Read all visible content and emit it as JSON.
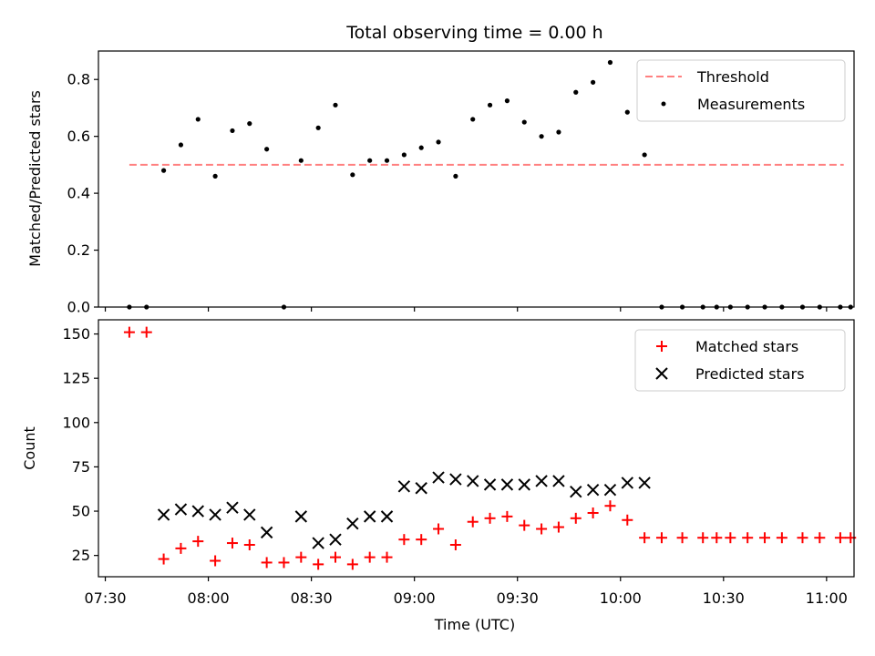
{
  "figure": {
    "title": "Total observing time = 0.00 h"
  },
  "colors": {
    "threshold": "#ff8080",
    "measurements": "#000000",
    "matched": "#ff0000",
    "predicted": "#000000",
    "axes": "#000000",
    "background": "#ffffff"
  },
  "chart_data": [
    {
      "type": "scatter",
      "title": "Total observing time = 0.00 h",
      "xlabel": "",
      "ylabel": "Matched/Predicted stars",
      "xlim": [
        "07:28",
        "11:08"
      ],
      "ylim": [
        0,
        0.9
      ],
      "yticks": [
        0.0,
        0.2,
        0.4,
        0.6,
        0.8
      ],
      "ytick_labels": [
        "0.0",
        "0.2",
        "0.4",
        "0.6",
        "0.8"
      ],
      "xticks": [
        "07:30",
        "08:00",
        "08:30",
        "09:00",
        "09:30",
        "10:00",
        "10:30",
        "11:00"
      ],
      "legend_position": "top-right",
      "legend": [
        "Threshold",
        "Measurements"
      ],
      "series": [
        {
          "name": "Threshold",
          "kind": "dashed-line",
          "x": [
            "07:37",
            "11:05"
          ],
          "y": [
            0.5,
            0.5
          ]
        },
        {
          "name": "Measurements",
          "kind": "dot",
          "x": [
            "07:37",
            "07:42",
            "07:47",
            "07:52",
            "07:57",
            "08:02",
            "08:07",
            "08:12",
            "08:17",
            "08:22",
            "08:27",
            "08:32",
            "08:37",
            "08:42",
            "08:47",
            "08:52",
            "08:57",
            "09:02",
            "09:07",
            "09:12",
            "09:17",
            "09:22",
            "09:27",
            "09:32",
            "09:37",
            "09:42",
            "09:47",
            "09:52",
            "09:57",
            "10:02",
            "10:07",
            "10:12",
            "10:18",
            "10:24",
            "10:28",
            "10:32",
            "10:37",
            "10:42",
            "10:47",
            "10:53",
            "10:58",
            "11:04",
            "11:07"
          ],
          "y": [
            0.0,
            0.0,
            0.48,
            0.57,
            0.66,
            0.46,
            0.62,
            0.645,
            0.555,
            0.0,
            0.515,
            0.63,
            0.71,
            0.465,
            0.515,
            0.515,
            0.535,
            0.56,
            0.58,
            0.46,
            0.66,
            0.71,
            0.725,
            0.65,
            0.6,
            0.615,
            0.755,
            0.79,
            0.86,
            0.685,
            0.535,
            0.0,
            0.0,
            0.0,
            0.0,
            0.0,
            0.0,
            0.0,
            0.0,
            0.0,
            0.0,
            0.0,
            0.0
          ]
        }
      ]
    },
    {
      "type": "scatter",
      "title": "",
      "xlabel": "Time (UTC)",
      "ylabel": "Count",
      "xlim": [
        "07:28",
        "11:08"
      ],
      "ylim": [
        13,
        158
      ],
      "yticks": [
        25,
        50,
        75,
        100,
        125,
        150
      ],
      "ytick_labels": [
        "25",
        "50",
        "75",
        "100",
        "125",
        "150"
      ],
      "xticks": [
        "07:30",
        "08:00",
        "08:30",
        "09:00",
        "09:30",
        "10:00",
        "10:30",
        "11:00"
      ],
      "xtick_labels": [
        "07:30",
        "08:00",
        "08:30",
        "09:00",
        "09:30",
        "10:00",
        "10:30",
        "11:00"
      ],
      "legend_position": "top-right",
      "legend": [
        "Matched stars",
        "Predicted stars"
      ],
      "series": [
        {
          "name": "Matched stars",
          "kind": "plus",
          "x": [
            "07:37",
            "07:42",
            "07:47",
            "07:52",
            "07:57",
            "08:02",
            "08:07",
            "08:12",
            "08:17",
            "08:22",
            "08:27",
            "08:32",
            "08:37",
            "08:42",
            "08:47",
            "08:52",
            "08:57",
            "09:02",
            "09:07",
            "09:12",
            "09:17",
            "09:22",
            "09:27",
            "09:32",
            "09:37",
            "09:42",
            "09:47",
            "09:52",
            "09:57",
            "10:02",
            "10:07",
            "10:12",
            "10:18",
            "10:24",
            "10:28",
            "10:32",
            "10:37",
            "10:42",
            "10:47",
            "10:53",
            "10:58",
            "11:04",
            "11:07"
          ],
          "y": [
            151,
            151,
            23,
            29,
            33,
            22,
            32,
            31,
            21,
            21,
            24,
            20,
            24,
            20,
            24,
            24,
            34,
            34,
            40,
            31,
            44,
            46,
            47,
            42,
            40,
            41,
            46,
            49,
            53,
            45,
            35,
            35,
            35,
            35,
            35,
            35,
            35,
            35,
            35,
            35,
            35,
            35,
            35
          ]
        },
        {
          "name": "Predicted stars",
          "kind": "x",
          "x": [
            "07:47",
            "07:52",
            "07:57",
            "08:02",
            "08:07",
            "08:12",
            "08:17",
            "08:27",
            "08:32",
            "08:37",
            "08:42",
            "08:47",
            "08:52",
            "08:57",
            "09:02",
            "09:07",
            "09:12",
            "09:17",
            "09:22",
            "09:27",
            "09:32",
            "09:37",
            "09:42",
            "09:47",
            "09:52",
            "09:57",
            "10:02",
            "10:07"
          ],
          "y": [
            48,
            51,
            50,
            48,
            52,
            48,
            38,
            47,
            32,
            34,
            43,
            47,
            47,
            64,
            63,
            69,
            68,
            67,
            65,
            65,
            65,
            67,
            67,
            61,
            62,
            62,
            66,
            66
          ]
        }
      ]
    }
  ]
}
